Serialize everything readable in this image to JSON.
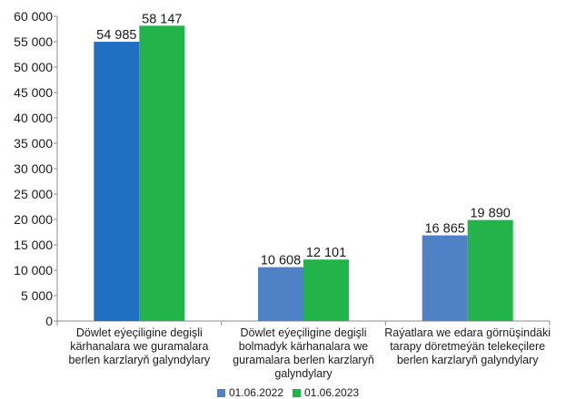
{
  "chart_data": {
    "type": "bar",
    "categories": [
      "Döwlet eýeçiligine degişli kärhanalara we guramalara berlen karzlaryň galyndylary",
      "Döwlet eýeçiligine degişli bolmadyk kärhanalara we guramalara berlen karzlaryň galyndylary",
      "Raýatlara we edara görnüşindäki tarapy döretmeýän telekeçilere berlen karzlaryň galyndylary"
    ],
    "category_lines": [
      [
        "Döwlet eýeçiligine degişli",
        "kärhanalara we guramalara",
        "berlen karzlaryň galyndylary"
      ],
      [
        "Döwlet eýeçiligine degişli",
        "bolmadyk kärhanalara we",
        "guramalara berlen karzlaryň",
        "galyndylary"
      ],
      [
        "Raýatlara we edara görnüşindäki",
        "tarapy döretmeýän telekeçilere",
        "berlen karzlaryň galyndylary"
      ]
    ],
    "series": [
      {
        "name": "01.06.2022",
        "values": [
          54985,
          10608,
          16865
        ],
        "value_labels": [
          "54 985",
          "10 608",
          "16 865"
        ],
        "colors": [
          "#1f6fc3",
          "#4f81c7",
          "#4f81c7"
        ]
      },
      {
        "name": "01.06.2023",
        "values": [
          58147,
          12101,
          19890
        ],
        "value_labels": [
          "58 147",
          "12 101",
          "19 890"
        ],
        "colors": [
          "#22b34b",
          "#22b34b",
          "#22b34b"
        ]
      }
    ],
    "ylim": [
      0,
      60000
    ],
    "yticks": [
      0,
      5000,
      10000,
      15000,
      20000,
      25000,
      30000,
      35000,
      40000,
      45000,
      50000,
      55000,
      60000
    ],
    "ytick_labels": [
      "0",
      "5 000",
      "10 000",
      "15 000",
      "20 000",
      "25 000",
      "30 000",
      "35 000",
      "40 000",
      "45 000",
      "50 000",
      "55 000",
      "60 000"
    ],
    "legend_colors": [
      "#4f81c7",
      "#22b34b"
    ],
    "grid": false,
    "legend_position": "bottom"
  }
}
